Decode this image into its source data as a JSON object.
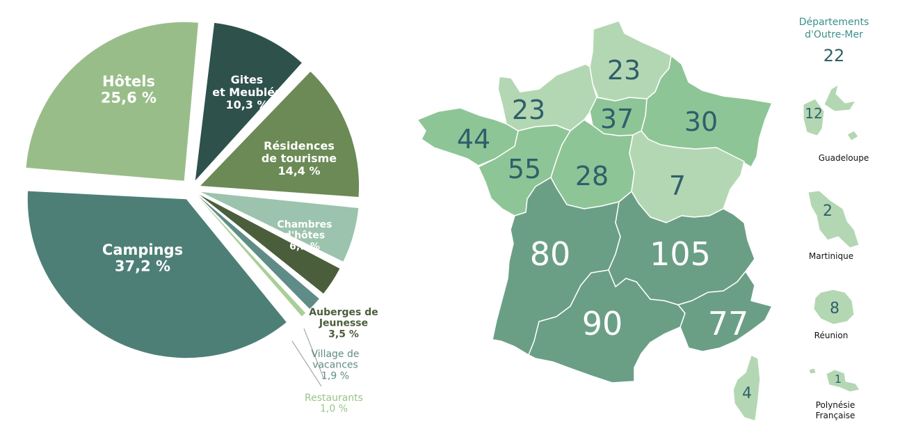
{
  "chart_data": [
    {
      "type": "pie",
      "slices": [
        {
          "label_lines": [
            "Gites",
            "et Meublés"
          ],
          "value": 10.3,
          "value_text": "10,3 %",
          "color": "#2e514c",
          "label_color": "#ffffff"
        },
        {
          "label_lines": [
            "Résidences",
            "de tourisme"
          ],
          "value": 14.4,
          "value_text": "14,4 %",
          "color": "#6b8a55",
          "label_color": "#ffffff"
        },
        {
          "label_lines": [
            "Chambres",
            "d'hôtes"
          ],
          "value": 6.1,
          "value_text": "6,1 %",
          "color": "#9cc3ad",
          "label_color": "#ffffff"
        },
        {
          "label_lines": [
            "Auberges de",
            "Jeunesse"
          ],
          "value": 3.5,
          "value_text": "3,5 %",
          "color": "#4b5e3b",
          "label_color": "#4b5e3b"
        },
        {
          "label_lines": [
            "Village de",
            "vacances"
          ],
          "value": 1.9,
          "value_text": "1,9 %",
          "color": "#5f8c86",
          "label_color": "#5f8c86"
        },
        {
          "label_lines": [
            "Restaurants"
          ],
          "value": 1.0,
          "value_text": "1,0 %",
          "color": "#a9cf98",
          "label_color": "#97c487"
        },
        {
          "label_lines": [
            "Campings"
          ],
          "value": 37.2,
          "value_text": "37,2 %",
          "color": "#4d7f76",
          "label_color": "#ffffff"
        },
        {
          "label_lines": [
            "Hôtels"
          ],
          "value": 25.6,
          "value_text": "25,6 %",
          "color": "#99bd89",
          "label_color": "#ffffff"
        }
      ]
    },
    {
      "type": "map",
      "regions": [
        {
          "id": "hauts-de-france",
          "value": 23,
          "fill": "#b4d7b3"
        },
        {
          "id": "normandie",
          "value": 23,
          "fill": "#b4d7b3"
        },
        {
          "id": "grand-est",
          "value": 30,
          "fill": "#8ec596"
        },
        {
          "id": "ile-de-france",
          "value": 37,
          "fill": "#8ec596"
        },
        {
          "id": "bretagne",
          "value": 44,
          "fill": "#8ec596"
        },
        {
          "id": "pays-de-la-loire",
          "value": 55,
          "fill": "#8ec596"
        },
        {
          "id": "centre-val-de-loire",
          "value": 28,
          "fill": "#8ec596"
        },
        {
          "id": "bourgogne-franche-comte",
          "value": 7,
          "fill": "#b4d7b3"
        },
        {
          "id": "nouvelle-aquitaine",
          "value": 80,
          "fill": "#6a9f86"
        },
        {
          "id": "auvergne-rhone-alpes",
          "value": 105,
          "fill": "#6a9f86"
        },
        {
          "id": "occitanie",
          "value": 90,
          "fill": "#6a9f86"
        },
        {
          "id": "provence-alpes-cote-dazur",
          "value": 77,
          "fill": "#6a9f86"
        },
        {
          "id": "corse",
          "value": 4,
          "fill": "#b4d7b3"
        }
      ],
      "overseas_title": [
        "Départements",
        "d'Outre-Mer"
      ],
      "overseas_total": 22,
      "overseas": [
        {
          "name_lines": [
            "Guadeloupe"
          ],
          "value": 12
        },
        {
          "name_lines": [
            "Martinique"
          ],
          "value": 2
        },
        {
          "name_lines": [
            "Réunion"
          ],
          "value": 8
        },
        {
          "name_lines": [
            "Polynésie",
            "Française"
          ],
          "value": 1
        }
      ],
      "colors": {
        "title": "#3a8f8a",
        "number": "#2f5f6a",
        "island": "#b4d7b3"
      }
    }
  ]
}
